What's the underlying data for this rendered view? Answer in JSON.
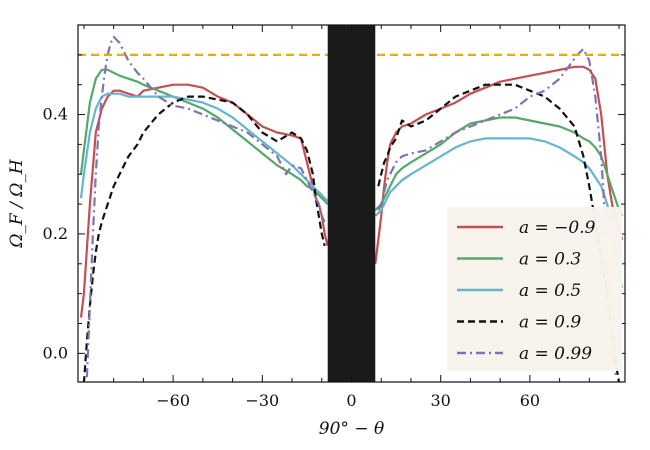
{
  "chart_data": {
    "type": "line",
    "title": "",
    "xlabel": "90° − θ",
    "ylabel": "Ω_F / Ω_H",
    "xlim": [
      -92,
      92
    ],
    "ylim": [
      -0.048,
      0.55
    ],
    "xticks": [
      -60,
      -30,
      0,
      30,
      60
    ],
    "xtick_labels": [
      "−60",
      "−30",
      "0",
      "30",
      "60"
    ],
    "yticks": [
      0.0,
      0.2,
      0.4
    ],
    "ytick_labels": [
      "0.0",
      "0.2",
      "0.4"
    ],
    "reference_line": {
      "y": 0.5,
      "color": "#ffa500",
      "style": "dashed"
    },
    "masked_band": {
      "x_range": [
        -8,
        8
      ],
      "color": "#1a1a1a"
    },
    "legend_position": "lower-right",
    "series": [
      {
        "name": "a = −0.9",
        "color": "#c44e52",
        "dash": "solid",
        "left": {
          "x": [
            -91,
            -90,
            -88,
            -86,
            -84,
            -82,
            -80,
            -78,
            -75,
            -72,
            -70,
            -65,
            -60,
            -55,
            -50,
            -45,
            -40,
            -35,
            -30,
            -25,
            -20,
            -17,
            -15,
            -13,
            -12,
            -11,
            -10,
            -9,
            -8
          ],
          "y": [
            0.06,
            0.1,
            0.25,
            0.37,
            0.41,
            0.43,
            0.44,
            0.44,
            0.435,
            0.43,
            0.44,
            0.445,
            0.45,
            0.45,
            0.445,
            0.43,
            0.42,
            0.4,
            0.38,
            0.37,
            0.365,
            0.36,
            0.32,
            0.28,
            0.26,
            0.25,
            0.23,
            0.2,
            0.18
          ]
        },
        "right": {
          "x": [
            8,
            9,
            10,
            11,
            12,
            13,
            15,
            17,
            20,
            25,
            30,
            35,
            40,
            45,
            50,
            55,
            60,
            65,
            70,
            75,
            78,
            80,
            82,
            84,
            86,
            88,
            90,
            91
          ],
          "y": [
            0.15,
            0.19,
            0.23,
            0.28,
            0.32,
            0.35,
            0.37,
            0.38,
            0.385,
            0.4,
            0.41,
            0.42,
            0.435,
            0.445,
            0.455,
            0.46,
            0.465,
            0.47,
            0.475,
            0.48,
            0.48,
            0.475,
            0.46,
            0.4,
            0.3,
            0.24,
            0.21,
            0.19
          ]
        }
      },
      {
        "name": "a = 0.3",
        "color": "#55a868",
        "dash": "solid",
        "left": {
          "x": [
            -91,
            -90,
            -88,
            -86,
            -84,
            -82,
            -80,
            -78,
            -75,
            -72,
            -70,
            -65,
            -60,
            -55,
            -50,
            -45,
            -40,
            -35,
            -30,
            -25,
            -20,
            -17,
            -15,
            -13,
            -12,
            -11,
            -10,
            -9,
            -8
          ],
          "y": [
            0.3,
            0.34,
            0.42,
            0.46,
            0.475,
            0.475,
            0.47,
            0.465,
            0.46,
            0.455,
            0.45,
            0.44,
            0.43,
            0.42,
            0.41,
            0.395,
            0.375,
            0.355,
            0.335,
            0.315,
            0.3,
            0.29,
            0.28,
            0.275,
            0.27,
            0.265,
            0.26,
            0.255,
            0.25
          ]
        },
        "right": {
          "x": [
            8,
            9,
            10,
            11,
            12,
            13,
            15,
            17,
            20,
            25,
            30,
            35,
            40,
            45,
            50,
            55,
            60,
            65,
            70,
            75,
            78,
            80,
            82,
            84,
            86,
            88,
            90,
            91
          ],
          "y": [
            0.24,
            0.245,
            0.25,
            0.26,
            0.27,
            0.28,
            0.3,
            0.31,
            0.32,
            0.335,
            0.35,
            0.37,
            0.385,
            0.39,
            0.395,
            0.395,
            0.39,
            0.385,
            0.38,
            0.37,
            0.36,
            0.355,
            0.345,
            0.33,
            0.3,
            0.27,
            0.24,
            0.23
          ]
        }
      },
      {
        "name": "a = 0.5",
        "color": "#64b5cd",
        "dash": "solid",
        "left": {
          "x": [
            -91,
            -90,
            -88,
            -86,
            -84,
            -82,
            -80,
            -78,
            -75,
            -72,
            -70,
            -65,
            -60,
            -55,
            -50,
            -45,
            -40,
            -35,
            -30,
            -25,
            -20,
            -17,
            -15,
            -13,
            -12,
            -11,
            -10,
            -9,
            -8
          ],
          "y": [
            0.26,
            0.3,
            0.37,
            0.41,
            0.43,
            0.435,
            0.435,
            0.435,
            0.43,
            0.43,
            0.43,
            0.43,
            0.43,
            0.425,
            0.42,
            0.41,
            0.395,
            0.375,
            0.355,
            0.335,
            0.315,
            0.3,
            0.29,
            0.28,
            0.275,
            0.27,
            0.265,
            0.26,
            0.255
          ]
        },
        "right": {
          "x": [
            8,
            9,
            10,
            11,
            12,
            13,
            15,
            17,
            20,
            25,
            30,
            35,
            40,
            45,
            50,
            55,
            60,
            65,
            70,
            75,
            78,
            80,
            82,
            84,
            86,
            88,
            90,
            91
          ],
          "y": [
            0.23,
            0.235,
            0.24,
            0.25,
            0.26,
            0.27,
            0.28,
            0.29,
            0.3,
            0.315,
            0.33,
            0.345,
            0.355,
            0.36,
            0.36,
            0.36,
            0.36,
            0.355,
            0.345,
            0.33,
            0.32,
            0.31,
            0.295,
            0.28,
            0.25,
            0.2,
            0.13,
            0.11
          ]
        }
      },
      {
        "name": "a = 0.9",
        "color": "#111111",
        "dash": "dashed",
        "left": {
          "x": [
            -90,
            -89,
            -88,
            -87,
            -86,
            -85,
            -84,
            -82,
            -80,
            -78,
            -75,
            -72,
            -70,
            -65,
            -60,
            -55,
            -50,
            -45,
            -40,
            -35,
            -30,
            -25,
            -20,
            -17,
            -15,
            -13,
            -12,
            -11,
            -10,
            -9
          ],
          "y": [
            -0.05,
            0.02,
            0.08,
            0.13,
            0.17,
            0.2,
            0.22,
            0.25,
            0.28,
            0.3,
            0.33,
            0.35,
            0.37,
            0.4,
            0.42,
            0.43,
            0.43,
            0.425,
            0.42,
            0.4,
            0.37,
            0.355,
            0.37,
            0.36,
            0.34,
            0.3,
            0.26,
            0.23,
            0.2,
            0.18
          ]
        },
        "right": {
          "x": [
            9,
            10,
            11,
            12,
            13,
            15,
            17,
            20,
            25,
            30,
            35,
            40,
            45,
            50,
            55,
            60,
            65,
            70,
            75,
            78,
            80,
            82,
            84,
            86,
            87,
            88,
            89,
            90
          ],
          "y": [
            0.28,
            0.3,
            0.32,
            0.33,
            0.345,
            0.36,
            0.39,
            0.38,
            0.39,
            0.41,
            0.43,
            0.44,
            0.45,
            0.45,
            0.45,
            0.44,
            0.43,
            0.41,
            0.38,
            0.33,
            0.28,
            0.22,
            0.16,
            0.1,
            0.06,
            0.02,
            -0.02,
            -0.05
          ]
        }
      },
      {
        "name": "a = 0.99",
        "color": "#8172b2",
        "dash": "dashdot",
        "left": {
          "x": [
            -89,
            -88,
            -87,
            -86,
            -85,
            -84,
            -83,
            -82,
            -81,
            -80,
            -78,
            -75,
            -72,
            -70,
            -65,
            -60,
            -55,
            -50,
            -45,
            -40,
            -35,
            -30,
            -25,
            -22,
            -20,
            -17,
            -15,
            -13,
            -12,
            -11,
            -10,
            -9
          ],
          "y": [
            -0.04,
            0.08,
            0.2,
            0.3,
            0.38,
            0.43,
            0.47,
            0.5,
            0.52,
            0.53,
            0.52,
            0.49,
            0.47,
            0.46,
            0.43,
            0.415,
            0.41,
            0.4,
            0.39,
            0.38,
            0.37,
            0.35,
            0.33,
            0.3,
            0.315,
            0.31,
            0.29,
            0.27,
            0.26,
            0.25,
            0.23,
            0.22
          ]
        },
        "right": {
          "x": [
            9,
            10,
            11,
            12,
            13,
            15,
            17,
            20,
            25,
            30,
            35,
            40,
            45,
            50,
            55,
            60,
            65,
            70,
            73,
            76,
            78,
            80,
            82,
            84,
            85,
            86,
            87,
            88,
            89
          ],
          "y": [
            0.24,
            0.25,
            0.27,
            0.29,
            0.3,
            0.32,
            0.33,
            0.335,
            0.34,
            0.355,
            0.37,
            0.38,
            0.39,
            0.4,
            0.41,
            0.43,
            0.44,
            0.46,
            0.48,
            0.5,
            0.51,
            0.49,
            0.43,
            0.33,
            0.25,
            0.15,
            0.06,
            0.0,
            -0.04
          ]
        }
      }
    ]
  }
}
